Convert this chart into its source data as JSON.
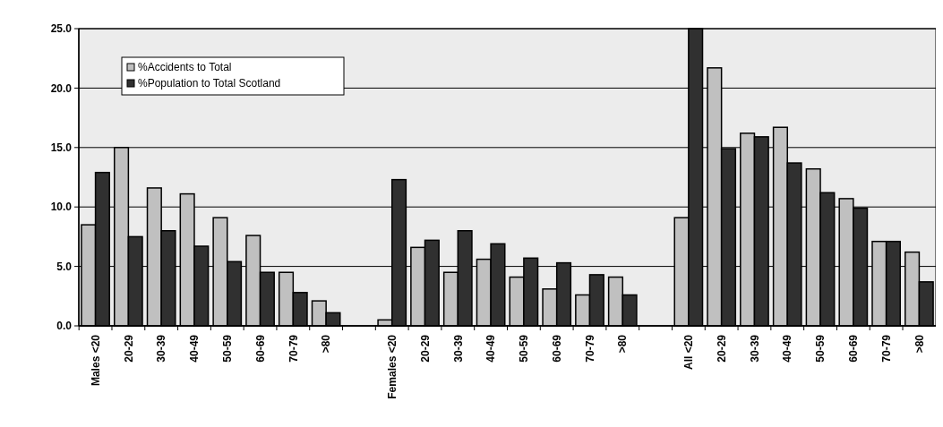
{
  "chart_data": {
    "type": "bar",
    "categories": [
      "Males <20",
      "20-29",
      "30-39",
      "40-49",
      "50-59",
      "60-69",
      "70-79",
      ">80",
      null,
      "Females <20",
      "20-29",
      "30-39",
      "40-49",
      "50-59",
      "60-69",
      "70-79",
      ">80",
      null,
      "All <20",
      "20-29",
      "30-39",
      "40-49",
      "50-59",
      "60-69",
      "70-79",
      ">80"
    ],
    "series": [
      {
        "name": "%Accidents to Total",
        "color": "#c0c0c0",
        "values": [
          8.5,
          15.0,
          11.6,
          11.1,
          9.1,
          7.6,
          4.5,
          2.1,
          null,
          0.5,
          6.6,
          4.5,
          5.6,
          4.1,
          3.1,
          2.6,
          4.1,
          null,
          9.1,
          21.7,
          16.2,
          16.7,
          13.2,
          10.7,
          7.1,
          6.2
        ]
      },
      {
        "name": "%Population to Total Scotland",
        "color": "#303030",
        "values": [
          12.9,
          7.5,
          8.0,
          6.7,
          5.4,
          4.5,
          2.8,
          1.1,
          null,
          12.3,
          7.2,
          8.0,
          6.9,
          5.7,
          5.3,
          4.3,
          2.6,
          null,
          25.0,
          14.9,
          15.9,
          13.7,
          11.2,
          9.9,
          7.1,
          3.7
        ]
      }
    ],
    "ylim": [
      0,
      25
    ],
    "yticks": [
      {
        "value": 0,
        "label": "0.0"
      },
      {
        "value": 5,
        "label": "5.0"
      },
      {
        "value": 10,
        "label": "10.0"
      },
      {
        "value": 15,
        "label": "15.0"
      },
      {
        "value": 20,
        "label": "20.0"
      },
      {
        "value": 25,
        "label": "25.0"
      }
    ],
    "grid": "y",
    "legend": "top left"
  }
}
